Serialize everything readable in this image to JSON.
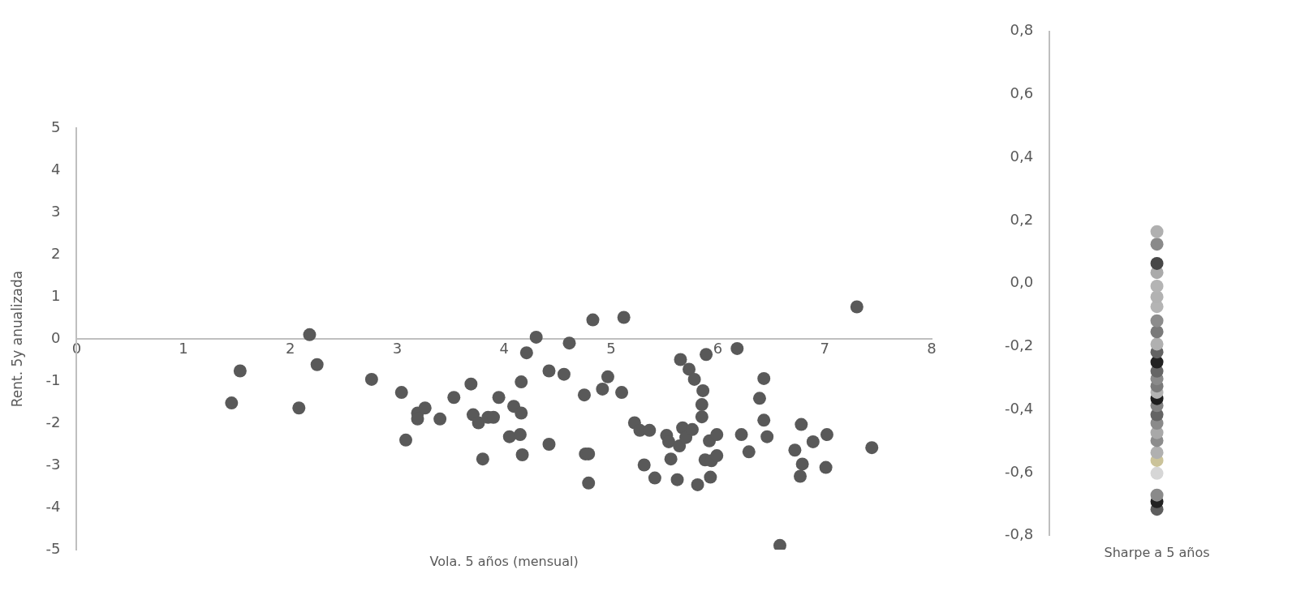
{
  "chart_data": [
    {
      "type": "scatter",
      "xlabel": "Vola. 5 años (mensual)",
      "ylabel": "Rent. 5y anualizada",
      "marker": "circle",
      "color": "#595959",
      "xlim": [
        0,
        8
      ],
      "ylim": [
        -5,
        5
      ],
      "xticks": [
        0,
        1,
        2,
        3,
        4,
        5,
        6,
        7,
        8
      ],
      "yticks": [
        -5,
        -4,
        -3,
        -2,
        -1,
        0,
        1,
        2,
        3,
        4,
        5
      ],
      "x": [
        1.53,
        1.45,
        2.18,
        2.25,
        2.08,
        2.76,
        3.04,
        3.08,
        3.19,
        3.19,
        3.26,
        3.4,
        3.53,
        3.69,
        3.71,
        3.76,
        3.8,
        3.85,
        3.9,
        3.95,
        4.05,
        4.09,
        4.15,
        4.16,
        4.16,
        4.17,
        4.21,
        4.3,
        4.42,
        4.56,
        4.61,
        4.42,
        4.75,
        4.76,
        4.79,
        4.79,
        4.83,
        4.92,
        4.97,
        5.1,
        5.12,
        5.22,
        5.27,
        5.36,
        5.31,
        5.41,
        5.52,
        5.54,
        5.56,
        5.65,
        5.64,
        5.67,
        5.7,
        5.62,
        5.73,
        5.76,
        5.78,
        5.81,
        5.85,
        5.86,
        5.85,
        5.88,
        5.89,
        5.92,
        5.94,
        5.93,
        5.99,
        5.99,
        6.18,
        6.22,
        6.29,
        6.39,
        6.43,
        6.43,
        6.46,
        6.72,
        6.78,
        6.79,
        6.77,
        6.89,
        7.02,
        7.01,
        7.3,
        7.44,
        6.58
      ],
      "values": [
        -0.76,
        -1.52,
        0.1,
        -0.61,
        -1.64,
        -0.96,
        -1.27,
        -2.4,
        -1.76,
        -1.9,
        -1.64,
        -1.9,
        -1.39,
        -1.07,
        -1.8,
        -1.99,
        -2.85,
        -1.86,
        -1.86,
        -1.39,
        -2.32,
        -1.6,
        -2.27,
        -1.76,
        -1.02,
        -2.75,
        -0.33,
        0.04,
        -0.76,
        -0.84,
        -0.1,
        -2.5,
        -1.33,
        -2.73,
        -2.73,
        -3.42,
        0.45,
        -1.19,
        -0.9,
        -1.27,
        0.51,
        -1.99,
        -2.17,
        -2.17,
        -2.99,
        -3.3,
        -2.29,
        -2.44,
        -2.85,
        -0.49,
        -2.54,
        -2.11,
        -2.34,
        -3.34,
        -0.72,
        -2.15,
        -0.96,
        -3.46,
        -1.85,
        -1.23,
        -1.56,
        -2.87,
        -0.37,
        -2.42,
        -2.89,
        -3.28,
        -2.27,
        -2.77,
        -0.23,
        -2.27,
        -2.68,
        -1.41,
        -0.94,
        -1.93,
        -2.32,
        -2.64,
        -2.03,
        -2.97,
        -3.26,
        -2.44,
        -2.27,
        -3.05,
        0.76,
        -2.58,
        -4.9
      ]
    },
    {
      "type": "scatter",
      "marker": "circle",
      "categories": [
        "Sharpe a 5 años"
      ],
      "ylim": [
        -0.8,
        0.8
      ],
      "yticks": [
        {
          "value": -0.8,
          "label": "-0,8"
        },
        {
          "value": -0.6,
          "label": "-0,6"
        },
        {
          "value": -0.4,
          "label": "-0,4"
        },
        {
          "value": -0.2,
          "label": "-0,2"
        },
        {
          "value": 0,
          "label": "0,0"
        },
        {
          "value": 0.2,
          "label": "0,2"
        },
        {
          "value": 0.4,
          "label": "0,4"
        },
        {
          "value": 0.6,
          "label": "0,6"
        },
        {
          "value": 0.8,
          "label": "0,8"
        }
      ],
      "series": [
        {
          "color": "#b0b0b0",
          "values": [
            0.165
          ]
        },
        {
          "color": "#8a8a8a",
          "values": [
            0.125
          ]
        },
        {
          "color": "#474747",
          "values": [
            0.064
          ]
        },
        {
          "color": "#aaaaaa",
          "values": [
            0.035
          ]
        },
        {
          "color": "#b4b4b4",
          "values": [
            -0.008
          ]
        },
        {
          "color": "#b2b2b2",
          "values": [
            -0.042
          ]
        },
        {
          "color": "#b4b4b4",
          "values": [
            -0.073
          ]
        },
        {
          "color": "#8c8c8c",
          "values": [
            -0.118
          ]
        },
        {
          "color": "#7a7a7a",
          "values": [
            -0.153
          ]
        },
        {
          "color": "#b0b0b0",
          "values": [
            -0.192
          ]
        },
        {
          "color": "#626262",
          "values": [
            -0.217
          ]
        },
        {
          "color": "#222222",
          "values": [
            -0.249
          ]
        },
        {
          "color": "#666666",
          "values": [
            -0.278
          ]
        },
        {
          "color": "#8a8a8a",
          "values": [
            -0.302
          ]
        },
        {
          "color": "#7a7a7a",
          "values": [
            -0.325
          ]
        },
        {
          "color": "#b2b2b2",
          "values": [
            -0.345
          ]
        },
        {
          "color": "#1e1e1e",
          "values": [
            -0.365
          ]
        },
        {
          "color": "#828282",
          "values": [
            -0.387
          ]
        },
        {
          "color": "#646464",
          "values": [
            -0.416
          ]
        },
        {
          "color": "#8a8a8a",
          "values": [
            -0.443
          ]
        },
        {
          "color": "#a8a8a8",
          "values": [
            -0.473
          ]
        },
        {
          "color": "#8c8c8c",
          "values": [
            -0.498
          ]
        },
        {
          "color": "#b0b0b0",
          "values": [
            -0.536
          ]
        },
        {
          "color": "#cbc39a",
          "values": [
            -0.561
          ]
        },
        {
          "color": "#d6d6d6",
          "values": [
            -0.602
          ]
        },
        {
          "color": "#8a8a8a",
          "values": [
            -0.671
          ]
        },
        {
          "color": "#222222",
          "values": [
            -0.692
          ]
        },
        {
          "color": "#5e5e5e",
          "values": [
            -0.716
          ]
        }
      ]
    }
  ]
}
